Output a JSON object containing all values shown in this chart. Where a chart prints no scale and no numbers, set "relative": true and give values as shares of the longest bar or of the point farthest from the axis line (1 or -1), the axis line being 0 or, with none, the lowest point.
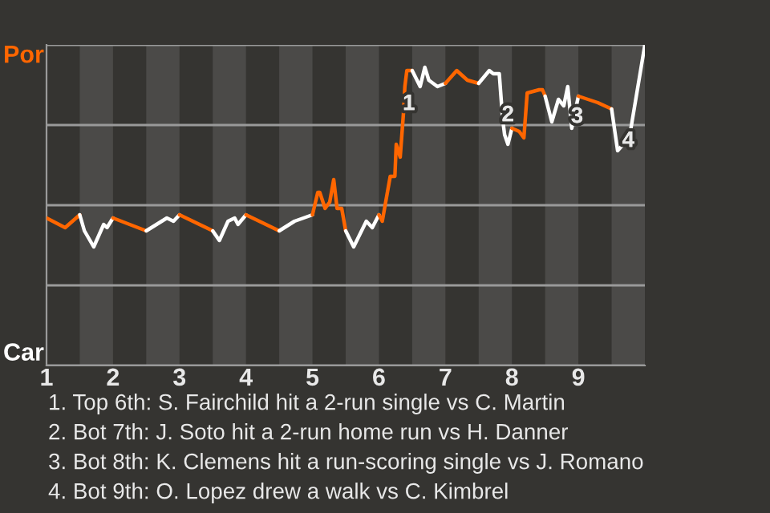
{
  "chart_data": {
    "type": "line",
    "relative": true,
    "series": [
      {
        "color": "#ff6600",
        "x": [
          1,
          1.28,
          1.5
        ],
        "values": [
          0.46,
          0.43,
          0.47
        ]
      },
      {
        "color": "#ffffff",
        "x": [
          1.5,
          1.57,
          1.71,
          1.86,
          1.91,
          2
        ],
        "values": [
          0.47,
          0.42,
          0.37,
          0.44,
          0.43,
          0.46
        ]
      },
      {
        "color": "#ff6600",
        "x": [
          2,
          2.5
        ],
        "values": [
          0.46,
          0.42
        ]
      },
      {
        "color": "#ffffff",
        "x": [
          2.5,
          2.81,
          2.91,
          3
        ],
        "values": [
          0.42,
          0.46,
          0.45,
          0.47
        ]
      },
      {
        "color": "#ff6600",
        "x": [
          3,
          3.5
        ],
        "values": [
          0.47,
          0.42
        ]
      },
      {
        "color": "#ffffff",
        "x": [
          3.5,
          3.6,
          3.73,
          3.83,
          3.88,
          4
        ],
        "values": [
          0.42,
          0.39,
          0.45,
          0.46,
          0.44,
          0.47
        ]
      },
      {
        "color": "#ff6600",
        "x": [
          4,
          4.5
        ],
        "values": [
          0.47,
          0.42
        ]
      },
      {
        "color": "#ffffff",
        "x": [
          4.5,
          4.73,
          5
        ],
        "values": [
          0.42,
          0.45,
          0.47
        ]
      },
      {
        "color": "#ff6600",
        "x": [
          5,
          5.08,
          5.11,
          5.19,
          5.26,
          5.32,
          5.37,
          5.44,
          5.5
        ],
        "values": [
          0.47,
          0.54,
          0.54,
          0.49,
          0.51,
          0.58,
          0.49,
          0.49,
          0.42
        ]
      },
      {
        "color": "#ffffff",
        "x": [
          5.5,
          5.62,
          5.81,
          5.9,
          6
        ],
        "values": [
          0.42,
          0.37,
          0.45,
          0.43,
          0.47
        ]
      },
      {
        "color": "#ff6600",
        "x": [
          6,
          6.05,
          6.17,
          6.24,
          6.26,
          6.32,
          6.37,
          6.39,
          6.42,
          6.5
        ],
        "values": [
          0.47,
          0.45,
          0.59,
          0.59,
          0.69,
          0.65,
          0.79,
          0.87,
          0.92,
          0.92
        ]
      },
      {
        "color": "#ffffff",
        "x": [
          6.5,
          6.62,
          6.69,
          6.75,
          6.88,
          7
        ],
        "values": [
          0.92,
          0.87,
          0.93,
          0.89,
          0.87,
          0.88
        ]
      },
      {
        "color": "#ff6600",
        "x": [
          7,
          7.17,
          7.33,
          7.5
        ],
        "values": [
          0.88,
          0.92,
          0.89,
          0.88
        ]
      },
      {
        "color": "#ffffff",
        "x": [
          7.5,
          7.66,
          7.72,
          7.81,
          7.86,
          7.89,
          7.94,
          8
        ],
        "values": [
          0.88,
          0.92,
          0.91,
          0.91,
          0.77,
          0.72,
          0.69,
          0.74
        ]
      },
      {
        "color": "#ff6600",
        "x": [
          8,
          8.11,
          8.18,
          8.23,
          8.41,
          8.46,
          8.5
        ],
        "values": [
          0.74,
          0.73,
          0.71,
          0.85,
          0.86,
          0.86,
          0.84
        ]
      },
      {
        "color": "#ffffff",
        "x": [
          8.5,
          8.6,
          8.7,
          8.78,
          8.84,
          8.9,
          9
        ],
        "values": [
          0.84,
          0.76,
          0.83,
          0.81,
          0.87,
          0.74,
          0.84
        ]
      },
      {
        "color": "#ff6600",
        "x": [
          9,
          9.29,
          9.5
        ],
        "values": [
          0.84,
          0.82,
          0.8
        ]
      },
      {
        "color": "#ffffff",
        "x": [
          9.5,
          9.59,
          9.72,
          9.75,
          10
        ],
        "values": [
          0.8,
          0.67,
          0.7,
          0.69,
          1.0
        ]
      }
    ],
    "xlim": [
      1,
      10
    ],
    "xticks": [
      1,
      2,
      3,
      4,
      5,
      6,
      7,
      8,
      9
    ],
    "grid": "y",
    "bands": [
      {
        "axis": "x",
        "from": 1.5,
        "to": 2,
        "color": "#4b4a48"
      },
      {
        "axis": "x",
        "from": 2.5,
        "to": 3,
        "color": "#4b4a48"
      },
      {
        "axis": "x",
        "from": 3.5,
        "to": 4,
        "color": "#4b4a48"
      },
      {
        "axis": "x",
        "from": 4.5,
        "to": 5,
        "color": "#4b4a48"
      },
      {
        "axis": "x",
        "from": 5.5,
        "to": 6,
        "color": "#4b4a48"
      },
      {
        "axis": "x",
        "from": 6.5,
        "to": 7,
        "color": "#4b4a48"
      },
      {
        "axis": "x",
        "from": 7.5,
        "to": 8,
        "color": "#4b4a48"
      },
      {
        "axis": "x",
        "from": 8.5,
        "to": 9,
        "color": "#4b4a48"
      },
      {
        "axis": "x",
        "from": 9.5,
        "to": 10,
        "color": "#4b4a48"
      }
    ],
    "annotations": [
      "Por",
      "Car",
      {
        "text": "1",
        "x": 6.45,
        "y": 0.815
      },
      {
        "text": "2",
        "x": 7.94,
        "y": 0.78
      },
      {
        "text": "3",
        "x": 8.98,
        "y": 0.775
      },
      {
        "text": "4",
        "x": 9.75,
        "y": 0.7
      },
      "1. Top 6th: S. Fairchild hit a 2-run single vs C. Martin",
      "2. Bot 7th: J. Soto hit a 2-run home run vs H. Danner",
      "3. Bot 8th: K. Clemens hit a run-scoring single vs J. Romano",
      "4. Bot 9th: O. Lopez drew a walk vs C. Kimbrel"
    ]
  }
}
